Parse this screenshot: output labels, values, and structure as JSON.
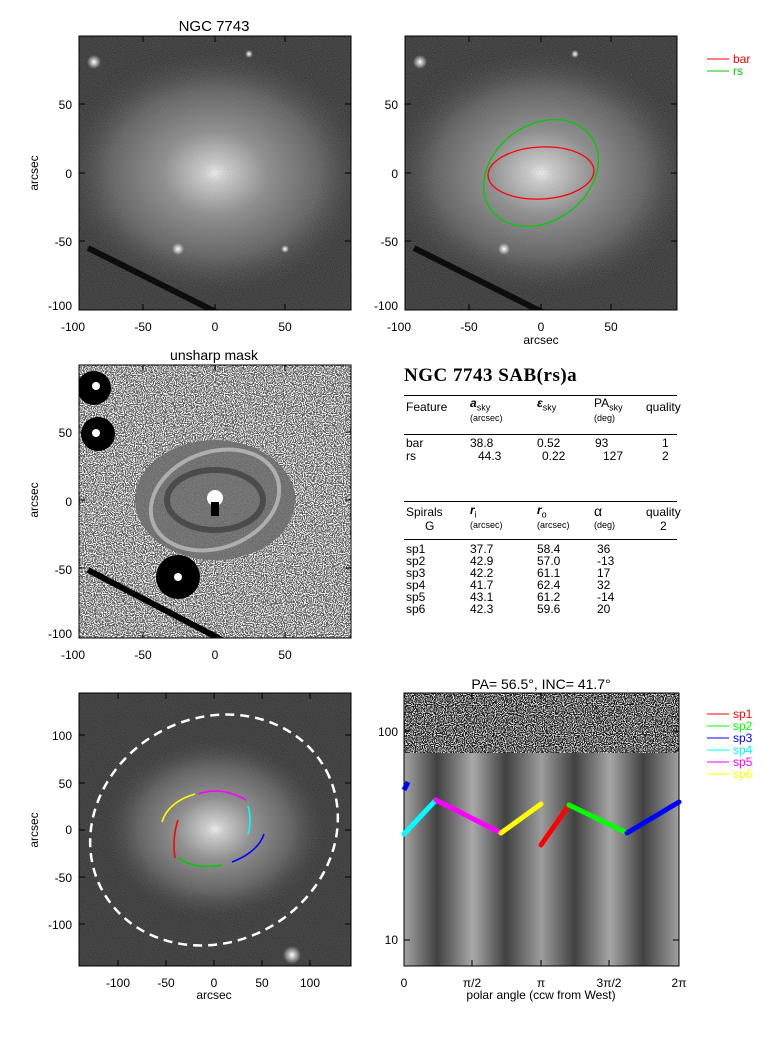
{
  "panels": {
    "p1_title": "NGC 7743",
    "p3_title": "unsharp mask",
    "p6_title": "PA= 56.5°, INC= 41.7°",
    "ylabel": "arcsec",
    "xlabel": "arcsec",
    "p6_xlabel": "polar angle (ccw from West)"
  },
  "ticks": {
    "x_small": [
      "-100",
      "-50",
      "0",
      "50"
    ],
    "y_small": [
      "50",
      "0",
      "-50",
      "-100"
    ],
    "x_big": [
      "-100",
      "-50",
      "0",
      "50",
      "100"
    ],
    "y_big": [
      "100",
      "50",
      "0",
      "-50",
      "-100"
    ],
    "y_log": [
      "100",
      "10"
    ],
    "x_polar": [
      "0",
      "π/2",
      "π",
      "3π/2",
      "2π"
    ]
  },
  "legend_top": [
    {
      "label": "bar",
      "color": "#ff0000"
    },
    {
      "label": "rs",
      "color": "#00cc00"
    }
  ],
  "legend_bottom": [
    {
      "label": "sp1",
      "color": "#ff0000"
    },
    {
      "label": "sp2",
      "color": "#00ff00"
    },
    {
      "label": "sp3",
      "color": "#0000ff"
    },
    {
      "label": "sp4",
      "color": "#00ffff"
    },
    {
      "label": "sp5",
      "color": "#ff00ff"
    },
    {
      "label": "sp6",
      "color": "#ffff00"
    }
  ],
  "table": {
    "title": "NGC 7743  SAB(rs)a",
    "h1": {
      "feature": "Feature",
      "a": "a",
      "a_sub": "sky",
      "a_unit": "(arcsec)",
      "e": "ε",
      "e_sub": "sky",
      "pa": "PA",
      "pa_sub": "sky",
      "pa_unit": "(deg)",
      "q": "quality"
    },
    "features": [
      {
        "name": "bar",
        "a": "38.8",
        "e": "0.52",
        "pa": "93",
        "q": "1"
      },
      {
        "name": "rs",
        "a": "44.3",
        "e": "0.22",
        "pa": "127",
        "q": "2"
      }
    ],
    "h2": {
      "spirals": "Spirals",
      "g": "G",
      "ri": "r",
      "ri_sub": "i",
      "ri_unit": "(arcsec)",
      "ro": "r",
      "ro_sub": "o",
      "ro_unit": "(arcsec)",
      "alpha": "α",
      "alpha_unit": "(deg)",
      "q": "quality",
      "qv": "2"
    },
    "spirals": [
      {
        "name": "sp1",
        "ri": "37.7",
        "ro": "58.4",
        "alpha": "36"
      },
      {
        "name": "sp2",
        "ri": "42.9",
        "ro": "57.0",
        "alpha": "-13"
      },
      {
        "name": "sp3",
        "ri": "42.2",
        "ro": "61.1",
        "alpha": "17"
      },
      {
        "name": "sp4",
        "ri": "41.7",
        "ro": "62.4",
        "alpha": "32"
      },
      {
        "name": "sp5",
        "ri": "43.1",
        "ro": "61.2",
        "alpha": "-14"
      },
      {
        "name": "sp6",
        "ri": "42.3",
        "ro": "59.6",
        "alpha": "20"
      }
    ]
  }
}
